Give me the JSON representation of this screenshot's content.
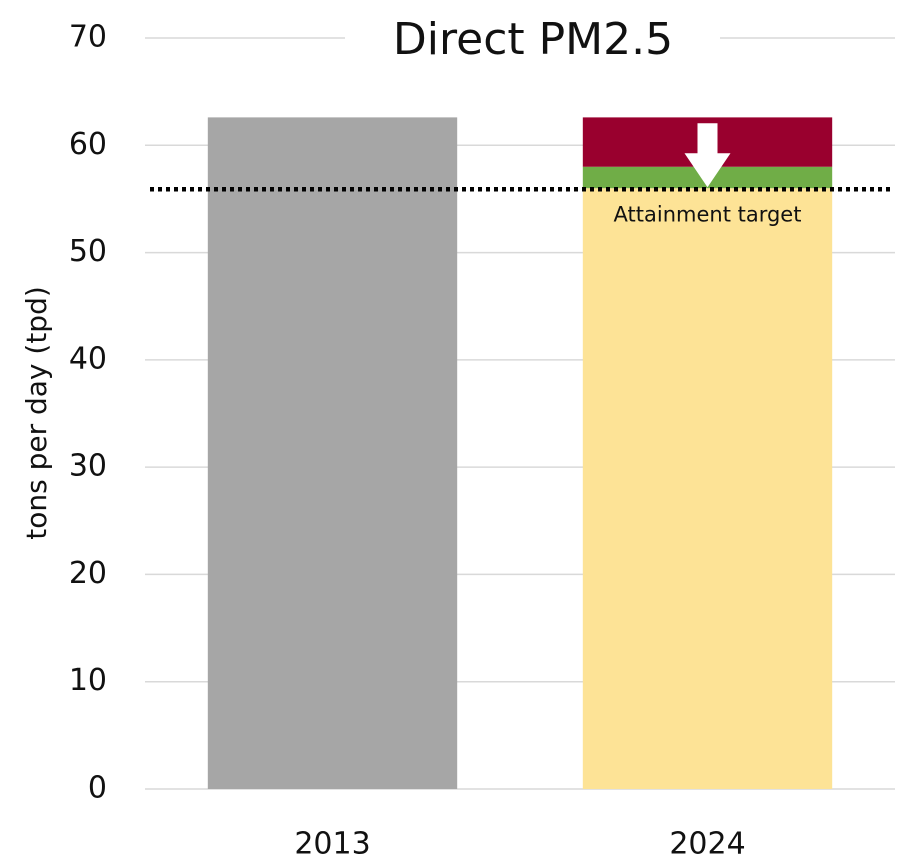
{
  "chart_data": {
    "type": "bar",
    "stacked": true,
    "title": "Direct PM2.5",
    "y_label": "tons per day (tpd)",
    "categories": [
      "2013",
      "2024"
    ],
    "series": [
      {
        "color": "#a6a6a6",
        "values": [
          62.6,
          null
        ]
      },
      {
        "color": "#fde396",
        "values": [
          null,
          56
        ]
      },
      {
        "color": "#70ad47",
        "values": [
          null,
          2
        ]
      },
      {
        "color": "#99002e",
        "values": [
          null,
          4.6
        ]
      }
    ],
    "ylim": [
      0,
      70
    ],
    "yticks": [
      0,
      10,
      20,
      30,
      40,
      50,
      60,
      70
    ],
    "grid": true,
    "annotations": [
      {
        "text": "Attainment target",
        "value": 55.9
      }
    ]
  }
}
